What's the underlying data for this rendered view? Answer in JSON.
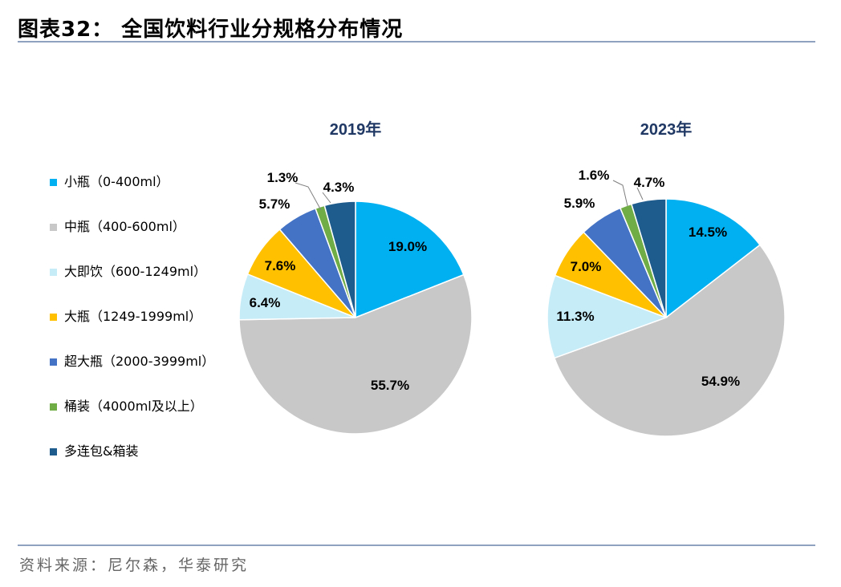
{
  "title": "图表32：  全国饮料行业分规格分布情况",
  "source": "资料来源：尼尔森，华泰研究",
  "chart_data": {
    "type": "pie",
    "legend_position": "left",
    "categories": [
      "小瓶（0-400ml）",
      "中瓶（400-600ml）",
      "大即饮（600-1249ml）",
      "大瓶（1249-1999ml）",
      "超大瓶（2000-3999ml）",
      "桶装（4000ml及以上）",
      "多连包&箱装"
    ],
    "colors": [
      "#00b0f0",
      "#c8c8c8",
      "#c6ecf8",
      "#ffc000",
      "#4472c4",
      "#70ad47",
      "#1f5c8e"
    ],
    "charts": [
      {
        "title": "2019年",
        "values": [
          19.0,
          55.7,
          6.4,
          7.6,
          5.7,
          1.3,
          4.3
        ],
        "labels": [
          "19.0%",
          "55.7%",
          "6.4%",
          "7.6%",
          "5.7%",
          "1.3%",
          "4.3%"
        ]
      },
      {
        "title": "2023年",
        "values": [
          14.5,
          54.9,
          11.3,
          7.0,
          5.9,
          1.6,
          4.7
        ],
        "labels": [
          "14.5%",
          "54.9%",
          "11.3%",
          "7.0%",
          "5.9%",
          "1.6%",
          "4.7%"
        ]
      }
    ]
  }
}
